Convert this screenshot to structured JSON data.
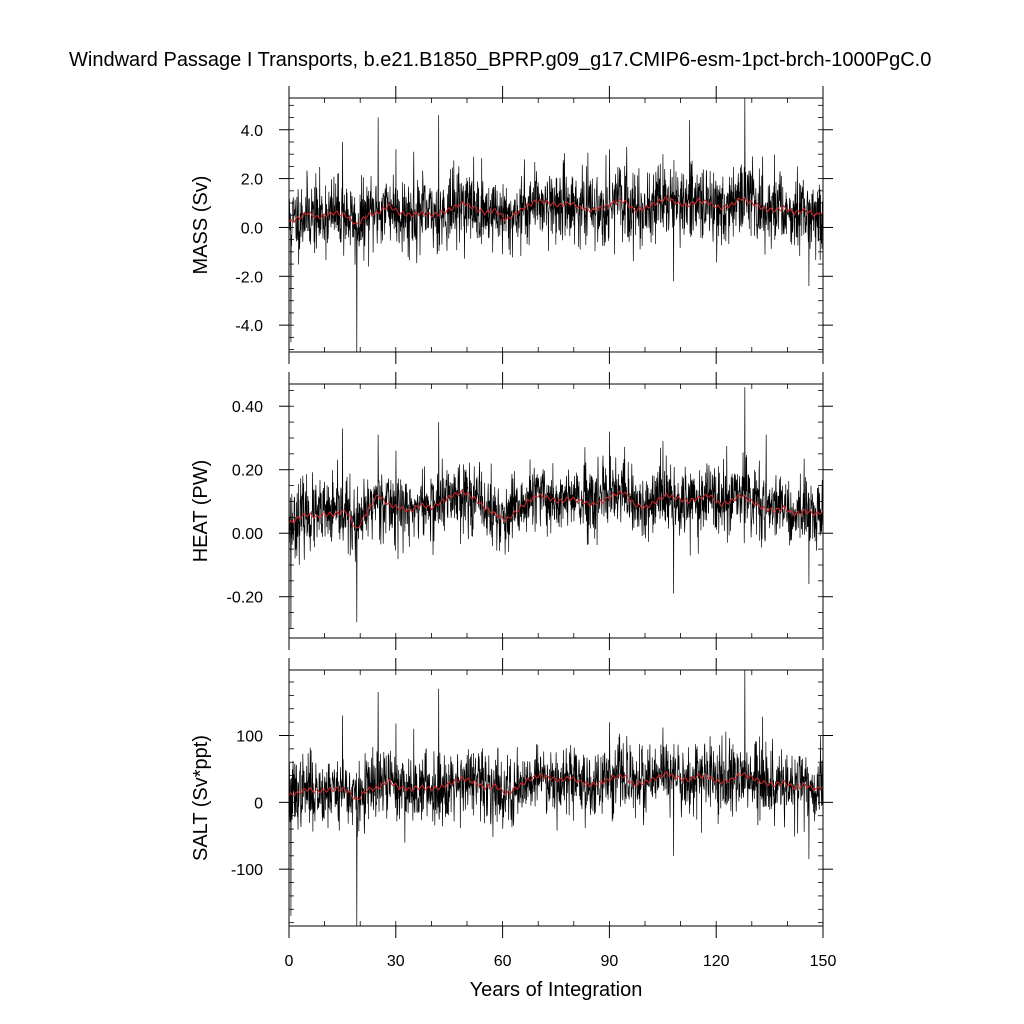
{
  "title": "Windward Passage I Transports, b.e21.B1850_BPRP.g09_g17.CMIP6-esm-1pct-brch-1000PgC.0",
  "chart_data": [
    {
      "type": "line",
      "id": "mass",
      "ylabel": "MASS (Sv)",
      "xlabel": "",
      "xlim": [
        0,
        150
      ],
      "ylim": [
        -5.1,
        5.3
      ],
      "yticks": [
        -4.0,
        -2.0,
        0.0,
        2.0,
        4.0
      ],
      "ytick_labels": [
        "-4.0",
        "-2.0",
        "0.0",
        "2.0",
        "4.0"
      ],
      "yminor_step": 0.5,
      "series": [
        {
          "role": "monthly",
          "color": "#000000",
          "noise": 0.75,
          "seed": 11
        },
        {
          "role": "running-mean",
          "color": "#d62728"
        }
      ],
      "mean_curve": {
        "x": [
          0,
          3,
          5,
          8,
          10,
          13,
          16,
          19,
          22,
          25,
          28,
          31,
          34,
          37,
          40,
          43,
          46,
          49,
          52,
          55,
          58,
          61,
          64,
          67,
          70,
          73,
          76,
          79,
          82,
          85,
          88,
          91,
          94,
          97,
          100,
          103,
          106,
          109,
          112,
          115,
          118,
          121,
          124,
          127,
          130,
          133,
          136,
          139,
          142,
          145,
          148,
          150
        ],
        "y": [
          0.2,
          0.4,
          0.6,
          0.4,
          0.5,
          0.6,
          0.5,
          0.1,
          0.5,
          0.6,
          0.9,
          0.6,
          0.5,
          0.6,
          0.5,
          0.6,
          0.8,
          1.0,
          0.8,
          0.6,
          0.7,
          0.3,
          0.6,
          0.9,
          1.1,
          1.0,
          0.9,
          1.0,
          0.8,
          0.7,
          0.8,
          1.0,
          1.1,
          0.7,
          0.8,
          1.0,
          1.2,
          1.0,
          0.9,
          1.1,
          1.0,
          0.8,
          0.9,
          1.2,
          1.0,
          0.8,
          0.7,
          0.8,
          0.6,
          0.7,
          0.5,
          0.6
        ]
      },
      "spikes": [
        [
          0.5,
          -4.7
        ],
        [
          19,
          -5.1
        ],
        [
          25,
          4.5
        ],
        [
          42,
          4.6
        ],
        [
          128,
          5.3
        ],
        [
          30,
          3.2
        ],
        [
          15,
          3.5
        ],
        [
          35,
          3.1
        ],
        [
          90,
          3.2
        ],
        [
          105,
          3.0
        ],
        [
          108,
          -2.2
        ],
        [
          133,
          2.9
        ],
        [
          146,
          -2.4
        ]
      ]
    },
    {
      "type": "line",
      "id": "heat",
      "ylabel": "HEAT (PW)",
      "xlabel": "",
      "xlim": [
        0,
        150
      ],
      "ylim": [
        -0.33,
        0.47
      ],
      "yticks": [
        -0.2,
        0.0,
        0.2,
        0.4
      ],
      "ytick_labels": [
        "-0.20",
        "0.00",
        "0.20",
        "0.40"
      ],
      "yminor_step": 0.05,
      "series": [
        {
          "role": "monthly",
          "color": "#000000",
          "noise": 0.055,
          "seed": 23
        },
        {
          "role": "running-mean",
          "color": "#d62728"
        }
      ],
      "mean_curve": {
        "x": [
          0,
          3,
          5,
          8,
          10,
          13,
          16,
          19,
          22,
          25,
          28,
          31,
          34,
          37,
          40,
          43,
          46,
          49,
          52,
          55,
          58,
          61,
          64,
          67,
          70,
          73,
          76,
          79,
          82,
          85,
          88,
          91,
          94,
          97,
          100,
          103,
          106,
          109,
          112,
          115,
          118,
          121,
          124,
          127,
          130,
          133,
          136,
          139,
          142,
          145,
          148,
          150
        ],
        "y": [
          0.03,
          0.05,
          0.06,
          0.05,
          0.06,
          0.06,
          0.07,
          0.01,
          0.07,
          0.12,
          0.09,
          0.08,
          0.07,
          0.09,
          0.08,
          0.1,
          0.12,
          0.13,
          0.11,
          0.08,
          0.06,
          0.04,
          0.07,
          0.1,
          0.12,
          0.11,
          0.1,
          0.11,
          0.1,
          0.09,
          0.1,
          0.12,
          0.13,
          0.09,
          0.08,
          0.1,
          0.12,
          0.11,
          0.1,
          0.11,
          0.12,
          0.09,
          0.1,
          0.12,
          0.1,
          0.08,
          0.07,
          0.08,
          0.06,
          0.07,
          0.06,
          0.07
        ]
      },
      "spikes": [
        [
          0.5,
          -0.3
        ],
        [
          19,
          -0.28
        ],
        [
          25,
          0.31
        ],
        [
          42,
          0.35
        ],
        [
          128,
          0.46
        ],
        [
          15,
          0.33
        ],
        [
          30,
          0.26
        ],
        [
          90,
          0.32
        ],
        [
          105,
          0.29
        ],
        [
          134,
          0.31
        ],
        [
          108,
          -0.19
        ],
        [
          146,
          -0.16
        ]
      ]
    },
    {
      "type": "line",
      "id": "salt",
      "ylabel": "SALT (Sv*ppt)",
      "xlabel": "Years of Integration",
      "xlim": [
        0,
        150
      ],
      "xticks": [
        0,
        30,
        60,
        90,
        120,
        150
      ],
      "xtick_labels": [
        "0",
        "30",
        "60",
        "90",
        "120",
        "150"
      ],
      "xminor_step": 10,
      "ylim": [
        -185,
        198
      ],
      "yticks": [
        -100,
        0,
        100
      ],
      "ytick_labels": [
        "-100",
        "0",
        "100"
      ],
      "yminor_step": 20,
      "series": [
        {
          "role": "monthly",
          "color": "#000000",
          "noise": 26,
          "seed": 37
        },
        {
          "role": "running-mean",
          "color": "#d62728"
        }
      ],
      "mean_curve": {
        "x": [
          0,
          3,
          5,
          8,
          10,
          13,
          16,
          19,
          22,
          25,
          28,
          31,
          34,
          37,
          40,
          43,
          46,
          49,
          52,
          55,
          58,
          61,
          64,
          67,
          70,
          73,
          76,
          79,
          82,
          85,
          88,
          91,
          94,
          97,
          100,
          103,
          106,
          109,
          112,
          115,
          118,
          121,
          124,
          127,
          130,
          133,
          136,
          139,
          142,
          145,
          148,
          150
        ],
        "y": [
          10,
          15,
          20,
          16,
          18,
          20,
          19,
          3,
          19,
          22,
          32,
          22,
          19,
          23,
          20,
          23,
          30,
          36,
          30,
          22,
          25,
          12,
          22,
          33,
          40,
          37,
          33,
          37,
          30,
          26,
          30,
          37,
          40,
          26,
          30,
          36,
          43,
          37,
          33,
          40,
          37,
          30,
          33,
          43,
          37,
          30,
          26,
          30,
          22,
          26,
          19,
          22
        ]
      },
      "spikes": [
        [
          0.5,
          -170
        ],
        [
          19,
          -185
        ],
        [
          25,
          165
        ],
        [
          42,
          170
        ],
        [
          128,
          198
        ],
        [
          15,
          130
        ],
        [
          30,
          118
        ],
        [
          35,
          110
        ],
        [
          90,
          120
        ],
        [
          105,
          112
        ],
        [
          108,
          -80
        ],
        [
          133,
          128
        ],
        [
          146,
          -85
        ]
      ]
    }
  ]
}
